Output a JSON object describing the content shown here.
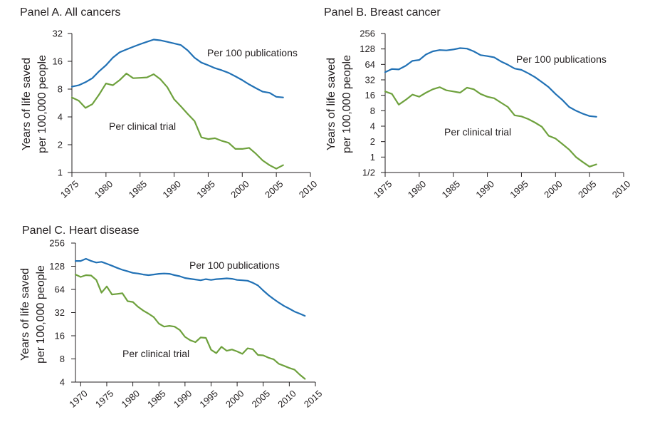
{
  "chart_data": [
    {
      "type": "line",
      "title": "Panel A. All cancers",
      "ylabel": [
        "Years of life saved",
        "per 100,000 people"
      ],
      "xlabel": "",
      "y_scale": "log2",
      "ylim": [
        1,
        32
      ],
      "y_ticks": [
        1,
        2,
        4,
        8,
        16,
        32
      ],
      "y_tick_labels": [
        "1",
        "2",
        "4",
        "8",
        "16",
        "32"
      ],
      "xlim": [
        1975,
        2010
      ],
      "x_ticks": [
        1975,
        1980,
        1985,
        1990,
        1995,
        2000,
        2005,
        2010
      ],
      "x_tick_labels": [
        "1975",
        "1980",
        "1985",
        "1990",
        "1995",
        "2000",
        "2005",
        "2010"
      ],
      "series": [
        {
          "name": "Per 100 publications",
          "color": "#2171b5",
          "points": [
            [
              1975,
              8.5
            ],
            [
              1976,
              8.8
            ],
            [
              1977,
              9.5
            ],
            [
              1978,
              10.5
            ],
            [
              1979,
              12.5
            ],
            [
              1980,
              14.5
            ],
            [
              1981,
              17.5
            ],
            [
              1982,
              20
            ],
            [
              1983,
              21.5
            ],
            [
              1984,
              23
            ],
            [
              1985,
              24.5
            ],
            [
              1986,
              26
            ],
            [
              1987,
              27.5
            ],
            [
              1988,
              27
            ],
            [
              1989,
              26
            ],
            [
              1990,
              25
            ],
            [
              1991,
              24
            ],
            [
              1992,
              21
            ],
            [
              1993,
              17.5
            ],
            [
              1994,
              15.5
            ],
            [
              1995,
              14.5
            ],
            [
              1996,
              13.5
            ],
            [
              1997,
              12.8
            ],
            [
              1998,
              12
            ],
            [
              1999,
              11
            ],
            [
              2000,
              10
            ],
            [
              2001,
              9
            ],
            [
              2002,
              8.2
            ],
            [
              2003,
              7.5
            ],
            [
              2004,
              7.3
            ],
            [
              2005,
              6.6
            ],
            [
              2006,
              6.5
            ]
          ]
        },
        {
          "name": "Per clinical trial",
          "color": "#6ea13d",
          "points": [
            [
              1975,
              6.5
            ],
            [
              1976,
              6
            ],
            [
              1977,
              5
            ],
            [
              1978,
              5.5
            ],
            [
              1979,
              7
            ],
            [
              1980,
              9.2
            ],
            [
              1981,
              8.8
            ],
            [
              1982,
              10
            ],
            [
              1983,
              11.8
            ],
            [
              1984,
              10.5
            ],
            [
              1985,
              10.6
            ],
            [
              1986,
              10.7
            ],
            [
              1987,
              11.6
            ],
            [
              1988,
              10.2
            ],
            [
              1989,
              8.4
            ],
            [
              1990,
              6.2
            ],
            [
              1991,
              5.2
            ],
            [
              1992,
              4.3
            ],
            [
              1993,
              3.6
            ],
            [
              1994,
              2.4
            ],
            [
              1995,
              2.3
            ],
            [
              1996,
              2.35
            ],
            [
              1997,
              2.2
            ],
            [
              1998,
              2.1
            ],
            [
              1999,
              1.8
            ],
            [
              2000,
              1.8
            ],
            [
              2001,
              1.85
            ],
            [
              2002,
              1.6
            ],
            [
              2003,
              1.35
            ],
            [
              2004,
              1.2
            ],
            [
              2005,
              1.1
            ],
            [
              2006,
              1.2
            ]
          ]
        }
      ]
    },
    {
      "type": "line",
      "title": "Panel B. Breast cancer",
      "ylabel": [
        "Years of life saved",
        "per 100,000 people"
      ],
      "xlabel": "",
      "y_scale": "log2",
      "ylim": [
        0.5,
        256
      ],
      "y_ticks": [
        0.5,
        1,
        2,
        4,
        8,
        16,
        32,
        64,
        128,
        256
      ],
      "y_tick_labels": [
        "1/2",
        "1",
        "2",
        "4",
        "8",
        "16",
        "32",
        "64",
        "128",
        "256"
      ],
      "xlim": [
        1975,
        2010
      ],
      "x_ticks": [
        1975,
        1980,
        1985,
        1990,
        1995,
        2000,
        2005,
        2010
      ],
      "x_tick_labels": [
        "1975",
        "1980",
        "1985",
        "1990",
        "1995",
        "2000",
        "2005",
        "2010"
      ],
      "series": [
        {
          "name": "Per 100 publications",
          "color": "#2171b5",
          "points": [
            [
              1975,
              45
            ],
            [
              1976,
              52
            ],
            [
              1977,
              51
            ],
            [
              1978,
              60
            ],
            [
              1979,
              75
            ],
            [
              1980,
              78
            ],
            [
              1981,
              100
            ],
            [
              1982,
              115
            ],
            [
              1983,
              122
            ],
            [
              1984,
              120
            ],
            [
              1985,
              125
            ],
            [
              1986,
              133
            ],
            [
              1987,
              130
            ],
            [
              1988,
              115
            ],
            [
              1989,
              97
            ],
            [
              1990,
              93
            ],
            [
              1991,
              88
            ],
            [
              1992,
              73
            ],
            [
              1993,
              63
            ],
            [
              1994,
              53
            ],
            [
              1995,
              50
            ],
            [
              1996,
              43
            ],
            [
              1997,
              36
            ],
            [
              1998,
              29
            ],
            [
              1999,
              23
            ],
            [
              2000,
              17
            ],
            [
              2001,
              13
            ],
            [
              2002,
              9.5
            ],
            [
              2003,
              8
            ],
            [
              2004,
              7
            ],
            [
              2005,
              6.3
            ],
            [
              2006,
              6.1
            ]
          ]
        },
        {
          "name": "Per clinical trial",
          "color": "#6ea13d",
          "points": [
            [
              1975,
              19
            ],
            [
              1976,
              17
            ],
            [
              1977,
              10.5
            ],
            [
              1978,
              13
            ],
            [
              1979,
              16.5
            ],
            [
              1980,
              15
            ],
            [
              1981,
              18
            ],
            [
              1982,
              21
            ],
            [
              1983,
              23
            ],
            [
              1984,
              20
            ],
            [
              1985,
              19
            ],
            [
              1986,
              18
            ],
            [
              1987,
              22.5
            ],
            [
              1988,
              21
            ],
            [
              1989,
              17
            ],
            [
              1990,
              15
            ],
            [
              1991,
              14
            ],
            [
              1992,
              11.5
            ],
            [
              1993,
              9.5
            ],
            [
              1994,
              6.5
            ],
            [
              1995,
              6.2
            ],
            [
              1996,
              5.5
            ],
            [
              1997,
              4.7
            ],
            [
              1998,
              3.9
            ],
            [
              1999,
              2.6
            ],
            [
              2000,
              2.3
            ],
            [
              2001,
              1.8
            ],
            [
              2002,
              1.4
            ],
            [
              2003,
              1
            ],
            [
              2004,
              0.8
            ],
            [
              2005,
              0.65
            ],
            [
              2006,
              0.72
            ]
          ]
        }
      ]
    },
    {
      "type": "line",
      "title": "Panel C. Heart disease",
      "ylabel": [
        "Years of life saved",
        "per 100,000 people"
      ],
      "xlabel": "",
      "y_scale": "log2",
      "ylim": [
        4,
        256
      ],
      "y_ticks": [
        4,
        8,
        16,
        32,
        64,
        128,
        256
      ],
      "y_tick_labels": [
        "4",
        "8",
        "16",
        "32",
        "64",
        "128",
        "256"
      ],
      "xlim": [
        1969,
        2015
      ],
      "x_ticks": [
        1970,
        1975,
        1980,
        1985,
        1990,
        1995,
        2000,
        2005,
        2010,
        2015
      ],
      "x_tick_labels": [
        "1970",
        "1975",
        "1980",
        "1985",
        "1990",
        "1995",
        "2000",
        "2005",
        "2010",
        "2015"
      ],
      "series": [
        {
          "name": "Per 100 publications",
          "color": "#2171b5",
          "points": [
            [
              1969,
              150
            ],
            [
              1970,
              150
            ],
            [
              1971,
              160
            ],
            [
              1972,
              150
            ],
            [
              1973,
              143
            ],
            [
              1974,
              146
            ],
            [
              1975,
              138
            ],
            [
              1976,
              130
            ],
            [
              1977,
              122
            ],
            [
              1978,
              115
            ],
            [
              1979,
              110
            ],
            [
              1980,
              105
            ],
            [
              1981,
              103
            ],
            [
              1982,
              100
            ],
            [
              1983,
              98
            ],
            [
              1984,
              100
            ],
            [
              1985,
              102
            ],
            [
              1986,
              103
            ],
            [
              1987,
              102
            ],
            [
              1988,
              98
            ],
            [
              1989,
              95
            ],
            [
              1990,
              90
            ],
            [
              1991,
              88
            ],
            [
              1992,
              86
            ],
            [
              1993,
              84
            ],
            [
              1994,
              87
            ],
            [
              1995,
              85
            ],
            [
              1996,
              87
            ],
            [
              1997,
              88
            ],
            [
              1998,
              89
            ],
            [
              1999,
              88
            ],
            [
              2000,
              85
            ],
            [
              2001,
              84
            ],
            [
              2002,
              83
            ],
            [
              2003,
              78
            ],
            [
              2004,
              72
            ],
            [
              2005,
              62
            ],
            [
              2006,
              54
            ],
            [
              2007,
              48
            ],
            [
              2008,
              43
            ],
            [
              2009,
              39
            ],
            [
              2010,
              36
            ],
            [
              2011,
              33
            ],
            [
              2012,
              31
            ],
            [
              2013,
              29
            ]
          ]
        },
        {
          "name": "Per clinical trial",
          "color": "#6ea13d",
          "points": [
            [
              1969,
              100
            ],
            [
              1970,
              93
            ],
            [
              1971,
              98
            ],
            [
              1972,
              97
            ],
            [
              1973,
              85
            ],
            [
              1974,
              58
            ],
            [
              1975,
              70
            ],
            [
              1976,
              55
            ],
            [
              1977,
              56
            ],
            [
              1978,
              57
            ],
            [
              1979,
              45
            ],
            [
              1980,
              44
            ],
            [
              1981,
              38
            ],
            [
              1982,
              34
            ],
            [
              1983,
              31
            ],
            [
              1984,
              28
            ],
            [
              1985,
              23
            ],
            [
              1986,
              21
            ],
            [
              1987,
              21.5
            ],
            [
              1988,
              21
            ],
            [
              1989,
              19
            ],
            [
              1990,
              15.5
            ],
            [
              1991,
              14
            ],
            [
              1992,
              13.2
            ],
            [
              1993,
              15.2
            ],
            [
              1994,
              15
            ],
            [
              1995,
              10.5
            ],
            [
              1996,
              9.5
            ],
            [
              1997,
              11.5
            ],
            [
              1998,
              10.2
            ],
            [
              1999,
              10.6
            ],
            [
              2000,
              10
            ],
            [
              2001,
              9.3
            ],
            [
              2002,
              11
            ],
            [
              2003,
              10.7
            ],
            [
              2004,
              9
            ],
            [
              2005,
              8.9
            ],
            [
              2006,
              8.3
            ],
            [
              2007,
              7.9
            ],
            [
              2008,
              6.9
            ],
            [
              2009,
              6.5
            ],
            [
              2010,
              6.1
            ],
            [
              2011,
              5.8
            ],
            [
              2012,
              5
            ],
            [
              2013,
              4.4
            ]
          ]
        }
      ]
    }
  ]
}
